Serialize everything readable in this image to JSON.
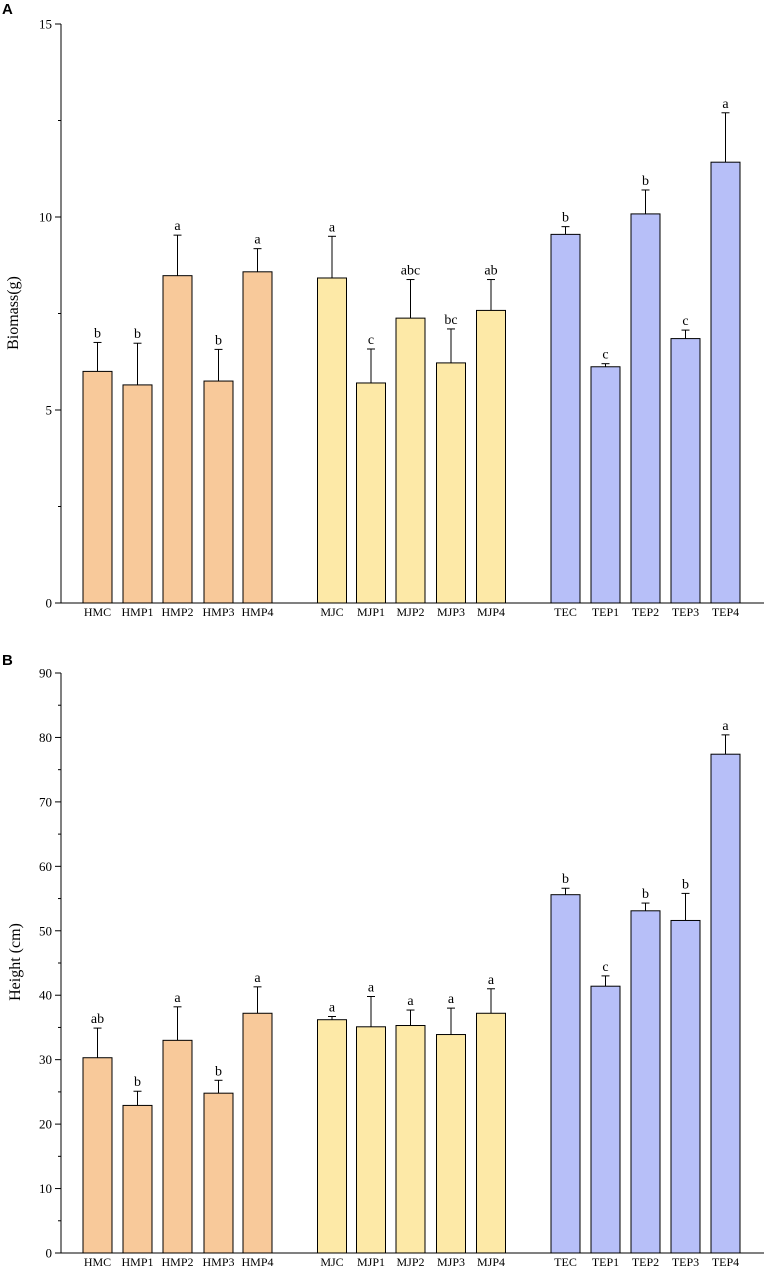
{
  "colors": {
    "HM": "#f8c99a",
    "MJ": "#fde9a7",
    "TE": "#b7bff8",
    "stroke": "#000000"
  },
  "chart_data": [
    {
      "panel": "A",
      "type": "bar",
      "ylabel": "Biomass(g)",
      "xlabel": "",
      "ylim": [
        0,
        15
      ],
      "yticks": [
        0,
        5,
        10,
        15
      ],
      "grid": false,
      "categories": [
        "HMC",
        "HMP1",
        "HMP2",
        "HMP3",
        "HMP4",
        "MJC",
        "MJP1",
        "MJP2",
        "MJP3",
        "MJP4",
        "TEC",
        "TEP1",
        "TEP2",
        "TEP3",
        "TEP4"
      ],
      "groups": [
        "HM",
        "HM",
        "HM",
        "HM",
        "HM",
        "MJ",
        "MJ",
        "MJ",
        "MJ",
        "MJ",
        "TE",
        "TE",
        "TE",
        "TE",
        "TE"
      ],
      "values": [
        6.0,
        5.65,
        8.48,
        5.75,
        8.58,
        8.42,
        5.7,
        7.38,
        6.22,
        7.58,
        9.55,
        6.12,
        10.08,
        6.85,
        11.42
      ],
      "errors": [
        0.75,
        1.08,
        1.05,
        0.82,
        0.6,
        1.08,
        0.88,
        1.0,
        0.88,
        0.8,
        0.2,
        0.08,
        0.62,
        0.22,
        1.28
      ],
      "significance": [
        "b",
        "b",
        "a",
        "b",
        "a",
        "a",
        "c",
        "abc",
        "bc",
        "ab",
        "b",
        "c",
        "b",
        "c",
        "a"
      ]
    },
    {
      "panel": "B",
      "type": "bar",
      "ylabel": "Height (cm)",
      "xlabel": "",
      "ylim": [
        0,
        90
      ],
      "yticks": [
        0,
        10,
        20,
        30,
        40,
        50,
        60,
        70,
        80,
        90
      ],
      "grid": false,
      "categories": [
        "HMC",
        "HMP1",
        "HMP2",
        "HMP3",
        "HMP4",
        "MJC",
        "MJP1",
        "MJP2",
        "MJP3",
        "MJP4",
        "TEC",
        "TEP1",
        "TEP2",
        "TEP3",
        "TEP4"
      ],
      "groups": [
        "HM",
        "HM",
        "HM",
        "HM",
        "HM",
        "MJ",
        "MJ",
        "MJ",
        "MJ",
        "MJ",
        "TE",
        "TE",
        "TE",
        "TE",
        "TE"
      ],
      "values": [
        30.3,
        22.9,
        33.0,
        24.8,
        37.2,
        36.2,
        35.1,
        35.3,
        33.9,
        37.2,
        55.6,
        41.4,
        53.1,
        51.6,
        77.4
      ],
      "errors": [
        4.6,
        2.2,
        5.2,
        2.0,
        4.1,
        0.5,
        4.7,
        2.4,
        4.1,
        3.8,
        1.0,
        1.6,
        1.2,
        4.2,
        3.0
      ],
      "significance": [
        "ab",
        "b",
        "a",
        "b",
        "a",
        "a",
        "a",
        "a",
        "a",
        "a",
        "b",
        "c",
        "b",
        "b",
        "a"
      ]
    }
  ]
}
